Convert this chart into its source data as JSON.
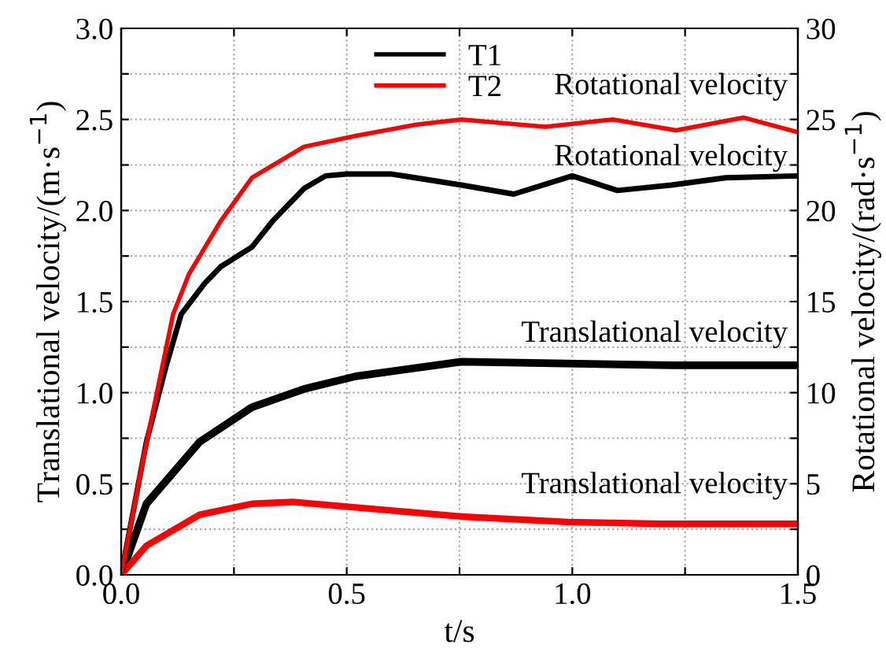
{
  "chart_data": {
    "type": "line",
    "xlabel": "t/s",
    "ylabel": "Translational velocity/(m·s$^{−1}$)",
    "y2label": "Rotational velocity/(rad·s$^{−1}$)",
    "xlim": [
      0,
      1.5
    ],
    "xticks": [
      {
        "value": 0,
        "label": "0.0"
      },
      {
        "value": 0.25,
        "label": null
      },
      0.5,
      {
        "value": 0.75,
        "label": null
      },
      {
        "value": 1,
        "label": "1.0"
      },
      {
        "value": 1.25,
        "label": null
      },
      1.5
    ],
    "ylim": [
      0,
      3
    ],
    "yticks": [
      {
        "value": 0,
        "label": "0.0"
      },
      {
        "value": 0.25,
        "label": null
      },
      0.5,
      {
        "value": 0.75,
        "label": null
      },
      {
        "value": 1,
        "label": "1.0"
      },
      {
        "value": 1.25,
        "label": null
      },
      1.5,
      {
        "value": 1.75,
        "label": null
      },
      {
        "value": 2,
        "label": "2.0"
      },
      {
        "value": 2.25,
        "label": null
      },
      2.5,
      {
        "value": 2.75,
        "label": null
      },
      {
        "value": 3,
        "label": "3.0"
      }
    ],
    "y2lim": [
      0,
      30
    ],
    "y2ticks": [
      0,
      {
        "value": 2.5,
        "label": null
      },
      5,
      {
        "value": 7.5,
        "label": null
      },
      10,
      {
        "value": 12.5,
        "label": null
      },
      15,
      {
        "value": 17.5,
        "label": null
      },
      20,
      {
        "value": 22.5,
        "label": null
      },
      25,
      {
        "value": 27.5,
        "label": null
      },
      30
    ],
    "grid": true,
    "legend": "top",
    "line_style": "solid",
    "marker": "none",
    "series": [
      {
        "name": "T1",
        "color": "#000000",
        "axis": "y",
        "x": [
          0,
          0.056,
          0.174,
          0.29,
          0.405,
          0.52,
          0.754,
          0.986,
          1.22,
          1.5
        ],
        "values": [
          0,
          0.39,
          0.73,
          0.92,
          1.02,
          1.09,
          1.17,
          1.16,
          1.15,
          1.15
        ]
      },
      {
        "name": "T2",
        "color": "#ff0000",
        "axis": "y",
        "x": [
          0,
          0.056,
          0.174,
          0.29,
          0.38,
          0.52,
          0.754,
          0.99,
          1.2,
          1.5
        ],
        "values": [
          0,
          0.16,
          0.33,
          0.39,
          0.4,
          0.37,
          0.32,
          0.29,
          0.28,
          0.28
        ]
      },
      {
        "color": "#000000",
        "axis": "y2",
        "x": [
          0,
          0.056,
          0.1,
          0.133,
          0.185,
          0.22,
          0.29,
          0.335,
          0.405,
          0.453,
          0.5,
          0.6,
          0.754,
          0.87,
          1.0,
          1.1,
          1.22,
          1.34,
          1.5
        ],
        "values": [
          0,
          7.3,
          11.5,
          14.3,
          16,
          16.9,
          18,
          19.4,
          21.2,
          21.9,
          22,
          22,
          21.4,
          20.9,
          21.9,
          21.1,
          21.4,
          21.8,
          21.9
        ]
      },
      {
        "color": "#ff0000",
        "axis": "y2",
        "x": [
          0,
          0.05,
          0.1,
          0.115,
          0.15,
          0.22,
          0.29,
          0.405,
          0.52,
          0.65,
          0.754,
          0.94,
          1.09,
          1.23,
          1.38,
          1.5
        ],
        "values": [
          0,
          6.5,
          12.5,
          14.3,
          16.5,
          19.4,
          21.8,
          23.5,
          24.1,
          24.7,
          25,
          24.6,
          25,
          24.4,
          25.1,
          24.3
        ]
      }
    ],
    "annotations": [
      "Rotational velocity",
      "Rotational velocity",
      "Translational velocity",
      "Translational velocity"
    ]
  }
}
